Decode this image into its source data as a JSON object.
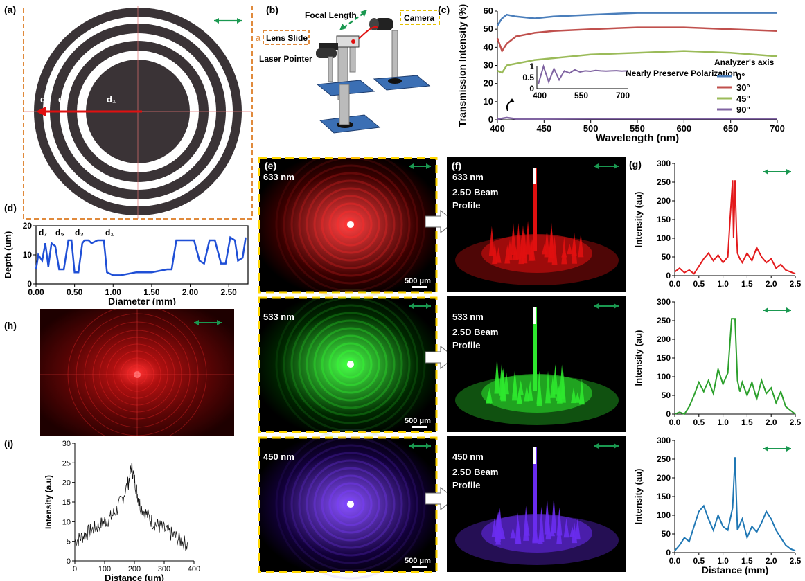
{
  "panels": {
    "a": {
      "label": "(a)",
      "ring_labels": [
        "d₇",
        "d₅",
        "d₃",
        "d₁"
      ]
    },
    "b": {
      "label": "(b)",
      "focal_length": "Focal Length",
      "camera": "Camera",
      "lens_slide": "Lens Slide",
      "lens_marker": "a",
      "laser_pointer": "Laser Pointer"
    },
    "c": {
      "label": "(c)",
      "legend_title": "Analyzer's axis",
      "inset_text": "Nearly Preserve Polarization"
    },
    "d": {
      "label": "(d)",
      "ring_labels": [
        "d₇",
        "d₅",
        "d₃",
        "d₁"
      ]
    },
    "e": {
      "label": "(e)",
      "wavelengths": [
        "633 nm",
        "533 nm",
        "450 nm"
      ],
      "scale": "500 μm"
    },
    "f": {
      "label": "(f)",
      "wavelengths": [
        "633 nm",
        "533 nm",
        "450 nm"
      ],
      "profile_label_1": "2.5D Beam",
      "profile_label_2": "Profile"
    },
    "g": {
      "label": "(g)"
    },
    "h": {
      "label": "(h)"
    },
    "i": {
      "label": "(i)"
    }
  },
  "colors": {
    "arrow_green": "#1a9850",
    "yellow_border": "#ffd700",
    "orange_border": "#e08a3c"
  },
  "chart_data": [
    {
      "id": "c",
      "type": "line",
      "xlabel": "Wavelength (nm)",
      "ylabel": "Transmission Intensity (%)",
      "xlim": [
        400,
        700
      ],
      "ylim": [
        0,
        60
      ],
      "xticks": [
        400,
        450,
        500,
        550,
        600,
        650,
        700
      ],
      "yticks": [
        0,
        10,
        20,
        30,
        40,
        50,
        60
      ],
      "series": [
        {
          "name": "0°",
          "color": "#4a7ebb",
          "x": [
            400,
            405,
            410,
            420,
            440,
            460,
            500,
            550,
            600,
            650,
            700
          ],
          "y": [
            52,
            56,
            58,
            57,
            56,
            57,
            58,
            59,
            59,
            59,
            59
          ]
        },
        {
          "name": "30°",
          "color": "#c0504d",
          "x": [
            400,
            405,
            410,
            420,
            440,
            460,
            500,
            550,
            600,
            650,
            700
          ],
          "y": [
            45,
            38,
            42,
            46,
            48,
            49,
            50,
            51,
            51,
            50,
            49
          ]
        },
        {
          "name": "45°",
          "color": "#9bbb59",
          "x": [
            400,
            405,
            410,
            420,
            440,
            460,
            500,
            550,
            600,
            650,
            700
          ],
          "y": [
            27,
            26,
            30,
            31,
            33,
            34,
            36,
            37,
            38,
            37,
            35
          ]
        },
        {
          "name": "90°",
          "color": "#8064a2",
          "x": [
            400,
            410,
            420,
            450,
            500,
            600,
            700
          ],
          "y": [
            0.3,
            1.2,
            0.5,
            0.5,
            0.6,
            0.6,
            0.6
          ]
        }
      ],
      "inset": {
        "xticks": [
          400,
          550,
          700
        ],
        "yticks": [
          0,
          0.5,
          1
        ]
      }
    },
    {
      "id": "d",
      "type": "line",
      "xlabel": "Diameter (mm)",
      "ylabel": "Depth (um)",
      "xlim": [
        0,
        2.75
      ],
      "ylim": [
        0,
        20
      ],
      "xticks": [
        "0.00",
        "0.50",
        "1.00",
        "1.50",
        "2.00",
        "2.50"
      ],
      "yticks": [
        0,
        10,
        20
      ],
      "series": [
        {
          "color": "#1f4fd6",
          "x": [
            0,
            0.03,
            0.08,
            0.12,
            0.16,
            0.2,
            0.25,
            0.3,
            0.36,
            0.42,
            0.46,
            0.5,
            0.55,
            0.6,
            0.63,
            0.68,
            0.72,
            0.8,
            0.88,
            0.92,
            1.0,
            1.1,
            1.3,
            1.5,
            1.7,
            1.76,
            1.82,
            1.88,
            1.95,
            2.05,
            2.12,
            2.18,
            2.25,
            2.32,
            2.4,
            2.46,
            2.52,
            2.58,
            2.62,
            2.68,
            2.72
          ],
          "y": [
            5,
            10,
            8,
            14,
            6,
            14,
            13,
            5,
            5,
            15,
            15,
            4,
            4,
            14,
            15,
            15,
            14,
            15,
            15,
            4,
            3,
            3,
            4,
            4,
            5,
            5,
            15,
            15,
            15,
            15,
            8,
            7,
            15,
            15,
            7,
            7,
            16,
            15,
            8,
            9,
            16
          ]
        }
      ]
    },
    {
      "id": "g-633",
      "type": "line",
      "xlabel": "",
      "ylabel": "Intensity (au)",
      "xlim": [
        0,
        2.5
      ],
      "ylim": [
        0,
        300
      ],
      "xticks": [
        "0.0",
        "0.5",
        "1.0",
        "1.5",
        "2.0",
        "2.5"
      ],
      "yticks": [
        0,
        50,
        100,
        150,
        200,
        250,
        300
      ],
      "series": [
        {
          "color": "#e31a1c",
          "x": [
            0,
            0.1,
            0.2,
            0.3,
            0.4,
            0.5,
            0.6,
            0.7,
            0.8,
            0.9,
            1.0,
            1.1,
            1.15,
            1.2,
            1.22,
            1.25,
            1.28,
            1.3,
            1.35,
            1.4,
            1.5,
            1.6,
            1.7,
            1.8,
            1.9,
            2.0,
            2.1,
            2.2,
            2.3,
            2.4,
            2.5
          ],
          "y": [
            10,
            20,
            8,
            15,
            5,
            25,
            45,
            60,
            40,
            55,
            35,
            50,
            155,
            255,
            100,
            255,
            120,
            60,
            45,
            35,
            60,
            40,
            75,
            50,
            35,
            45,
            20,
            30,
            15,
            10,
            5
          ]
        }
      ]
    },
    {
      "id": "g-533",
      "type": "line",
      "xlabel": "",
      "ylabel": "Intensity (au)",
      "xlim": [
        0,
        2.5
      ],
      "ylim": [
        0,
        300
      ],
      "xticks": [
        "0.0",
        "0.5",
        "1.0",
        "1.5",
        "2.0",
        "2.5"
      ],
      "yticks": [
        0,
        50,
        100,
        150,
        200,
        250,
        300
      ],
      "series": [
        {
          "color": "#2ca02c",
          "x": [
            0,
            0.1,
            0.2,
            0.3,
            0.4,
            0.5,
            0.6,
            0.7,
            0.8,
            0.9,
            1.0,
            1.1,
            1.18,
            1.2,
            1.25,
            1.3,
            1.35,
            1.4,
            1.5,
            1.6,
            1.7,
            1.8,
            1.9,
            2.0,
            2.1,
            2.2,
            2.3,
            2.4,
            2.5
          ],
          "y": [
            0,
            5,
            0,
            20,
            50,
            85,
            60,
            90,
            55,
            120,
            80,
            110,
            255,
            255,
            255,
            90,
            60,
            85,
            50,
            85,
            40,
            90,
            55,
            70,
            30,
            60,
            20,
            10,
            0
          ]
        }
      ]
    },
    {
      "id": "g-450",
      "type": "line",
      "xlabel": "Distance (mm)",
      "ylabel": "Intensity (au)",
      "xlim": [
        0,
        2.5
      ],
      "ylim": [
        0,
        300
      ],
      "xticks": [
        "0.0",
        "0.5",
        "1.0",
        "1.5",
        "2.0",
        "2.5"
      ],
      "yticks": [
        0,
        50,
        100,
        150,
        200,
        250,
        300
      ],
      "series": [
        {
          "color": "#1f77b4",
          "x": [
            0,
            0.1,
            0.2,
            0.3,
            0.4,
            0.5,
            0.6,
            0.7,
            0.8,
            0.9,
            1.0,
            1.1,
            1.2,
            1.25,
            1.3,
            1.4,
            1.5,
            1.6,
            1.7,
            1.8,
            1.9,
            2.0,
            2.1,
            2.2,
            2.3,
            2.4,
            2.5
          ],
          "y": [
            5,
            20,
            40,
            30,
            70,
            110,
            125,
            90,
            60,
            100,
            70,
            60,
            120,
            255,
            60,
            90,
            40,
            70,
            55,
            80,
            110,
            90,
            60,
            40,
            20,
            10,
            5
          ]
        }
      ]
    },
    {
      "id": "i",
      "type": "line",
      "xlabel": "Distance (um)",
      "ylabel": "Intensity (a.u)",
      "xlim": [
        0,
        400
      ],
      "ylim": [
        0,
        30
      ],
      "xticks": [
        0,
        100,
        200,
        300,
        400
      ],
      "yticks": [
        0,
        5,
        10,
        15,
        20,
        25,
        30
      ],
      "series": [
        {
          "color": "#111111",
          "x": [
            0,
            20,
            40,
            60,
            80,
            100,
            120,
            140,
            160,
            180,
            190,
            200,
            210,
            220,
            240,
            260,
            280,
            300,
            320,
            340,
            360,
            380
          ],
          "y": [
            5,
            6,
            7,
            8,
            9,
            10,
            11,
            13,
            16,
            20,
            24,
            21,
            17,
            14,
            12,
            10,
            9,
            8,
            7,
            6,
            5,
            4
          ]
        }
      ]
    }
  ]
}
